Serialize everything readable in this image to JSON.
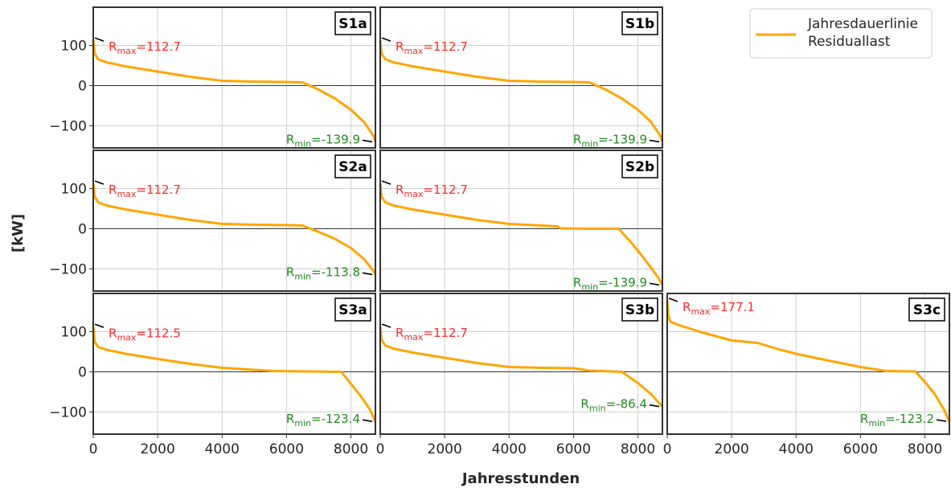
{
  "colors": {
    "line": "#FFA500",
    "rmax": "#FF2A2A",
    "rmin": "#1E8C1E",
    "frame": "#333333",
    "grid": "#D0D0D0",
    "zero_line": "#333333",
    "marker": "#000000"
  },
  "figure": {
    "ylabel": "[kW]",
    "xlabel": "Jahresstunden",
    "legend_label_line1": "Jahresdauerlinie",
    "legend_label_line2": "Residuallast",
    "legend_position": "top-right"
  },
  "chart_data": {
    "type": "line",
    "xlim": [
      0,
      8760
    ],
    "ylim": [
      -155,
      195
    ],
    "xticks": [
      0,
      2000,
      4000,
      6000,
      8000
    ],
    "yticks": [
      -100,
      0,
      100
    ],
    "ytick_labels": [
      "−100",
      "0",
      "100"
    ],
    "grid": true,
    "panels": [
      {
        "label": "S1a",
        "row": 0,
        "col": 0,
        "show_yticks": true,
        "show_xticks": false,
        "rmax": 112.7,
        "rmin": -139.9,
        "rmax_label": "=112.7",
        "rmin_label": "=-139.9",
        "x": [
          0,
          40,
          150,
          400,
          1000,
          2000,
          3000,
          4000,
          5000,
          6000,
          6500,
          7000,
          7500,
          8000,
          8400,
          8700,
          8760
        ],
        "y": [
          112.7,
          80,
          66,
          58,
          48,
          35,
          22,
          12,
          10,
          9,
          8,
          -10,
          -32,
          -60,
          -90,
          -125,
          -139.9
        ]
      },
      {
        "label": "S1b",
        "row": 0,
        "col": 1,
        "show_yticks": false,
        "show_xticks": false,
        "rmax": 112.7,
        "rmin": -139.9,
        "rmax_label": "=112.7",
        "rmin_label": "=-139.9",
        "x": [
          0,
          40,
          150,
          400,
          1000,
          2000,
          3000,
          4000,
          5000,
          6000,
          6500,
          7000,
          7500,
          8000,
          8400,
          8700,
          8760
        ],
        "y": [
          112.7,
          80,
          66,
          58,
          48,
          35,
          22,
          12,
          10,
          9,
          8,
          -10,
          -32,
          -60,
          -90,
          -125,
          -139.9
        ]
      },
      {
        "label": "S2a",
        "row": 1,
        "col": 0,
        "show_yticks": true,
        "show_xticks": false,
        "rmax": 112.7,
        "rmin": -113.8,
        "rmax_label": "=112.7",
        "rmin_label": "=-113.8",
        "x": [
          0,
          40,
          150,
          400,
          1000,
          2000,
          3000,
          4000,
          5000,
          6000,
          6500,
          7000,
          7500,
          8000,
          8400,
          8700,
          8760
        ],
        "y": [
          112.7,
          80,
          66,
          58,
          48,
          35,
          22,
          12,
          10,
          9,
          8,
          -8,
          -25,
          -48,
          -75,
          -105,
          -113.8
        ]
      },
      {
        "label": "S2b",
        "row": 1,
        "col": 1,
        "show_yticks": false,
        "show_xticks": false,
        "rmax": 112.7,
        "rmin": -139.9,
        "rmax_label": "=112.7",
        "rmin_label": "=-139.9",
        "x": [
          0,
          40,
          150,
          400,
          1000,
          2000,
          3000,
          4000,
          5000,
          5500,
          5600,
          6500,
          7400,
          7800,
          8200,
          8600,
          8760
        ],
        "y": [
          112.7,
          80,
          66,
          58,
          48,
          35,
          22,
          12,
          8,
          6,
          1,
          0,
          0,
          -35,
          -75,
          -118,
          -139.9
        ]
      },
      {
        "label": "S3a",
        "row": 2,
        "col": 0,
        "show_yticks": true,
        "show_xticks": true,
        "rmax": 112.5,
        "rmin": -123.4,
        "rmax_label": "=112.5",
        "rmin_label": "=-123.4",
        "x": [
          0,
          40,
          150,
          400,
          1000,
          2000,
          3000,
          4000,
          5000,
          5600,
          7700,
          8000,
          8300,
          8600,
          8760
        ],
        "y": [
          112.5,
          75,
          62,
          55,
          45,
          32,
          20,
          10,
          5,
          2,
          0,
          -30,
          -60,
          -95,
          -123.4
        ]
      },
      {
        "label": "S3b",
        "row": 2,
        "col": 1,
        "show_yticks": false,
        "show_xticks": true,
        "rmax": 112.7,
        "rmin": -86.4,
        "rmax_label": "=112.7",
        "rmin_label": "=-86.4",
        "x": [
          0,
          40,
          150,
          400,
          1000,
          2000,
          3000,
          4000,
          5000,
          6000,
          6500,
          7500,
          8000,
          8400,
          8760
        ],
        "y": [
          112.7,
          80,
          66,
          58,
          48,
          35,
          22,
          12,
          10,
          9,
          3,
          0,
          -28,
          -55,
          -86.4
        ]
      },
      {
        "label": "S3c",
        "row": 2,
        "col": 2,
        "show_yticks": false,
        "show_xticks": true,
        "rmax": 177.1,
        "rmin": -123.2,
        "rmax_label": "=177.1",
        "rmin_label": "=-123.2",
        "x": [
          0,
          30,
          100,
          300,
          1000,
          2000,
          2400,
          2800,
          3500,
          4000,
          5000,
          6000,
          6800,
          7700,
          8000,
          8300,
          8600,
          8760
        ],
        "y": [
          177.1,
          140,
          125,
          118,
          100,
          78,
          75,
          72,
          55,
          45,
          28,
          12,
          2,
          1,
          -25,
          -55,
          -95,
          -123.2
        ]
      }
    ]
  }
}
